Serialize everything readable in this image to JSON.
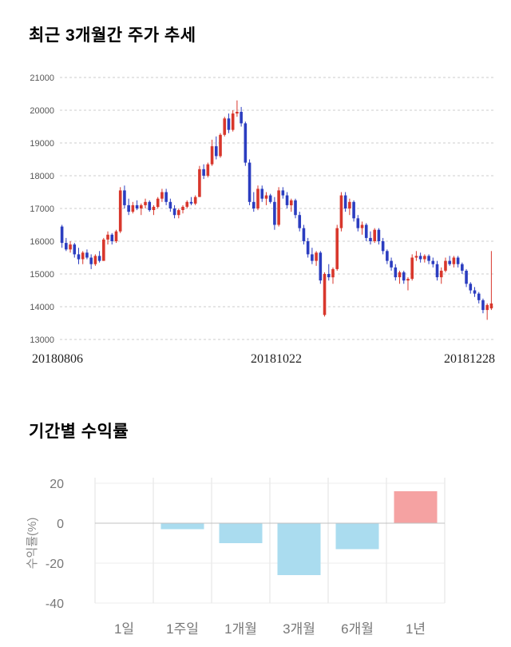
{
  "chart_data": [
    {
      "type": "candlestick",
      "title": "최근 3개월간 주가 추세",
      "x_labels": [
        "20180806",
        "20181022",
        "20181228"
      ],
      "y_ticks": [
        21000,
        20000,
        19000,
        18000,
        17000,
        16000,
        15000,
        14000,
        13000
      ],
      "ylim": [
        13000,
        21000
      ],
      "colors": {
        "up": "#d8372c",
        "down": "#2b3dc0",
        "grid": "#cccccc"
      },
      "candles": [
        [
          16450,
          16500,
          15800,
          15950
        ],
        [
          15950,
          16100,
          15700,
          15750
        ],
        [
          15750,
          16000,
          15650,
          15900
        ],
        [
          15900,
          15950,
          15500,
          15600
        ],
        [
          15600,
          15800,
          15300,
          15450
        ],
        [
          15450,
          15700,
          15300,
          15650
        ],
        [
          15650,
          15750,
          15450,
          15500
        ],
        [
          15500,
          15600,
          15150,
          15300
        ],
        [
          15300,
          15600,
          15250,
          15550
        ],
        [
          15550,
          15700,
          15350,
          15400
        ],
        [
          15400,
          16100,
          15400,
          16050
        ],
        [
          16050,
          16300,
          15900,
          16200
        ],
        [
          16200,
          16250,
          15900,
          16000
        ],
        [
          16000,
          16350,
          15950,
          16300
        ],
        [
          16300,
          17650,
          16250,
          17550
        ],
        [
          17550,
          17700,
          17000,
          17100
        ],
        [
          17100,
          17300,
          16800,
          16900
        ],
        [
          16900,
          17200,
          16850,
          17100
        ],
        [
          17100,
          17250,
          16950,
          17000
        ],
        [
          17000,
          17150,
          16800,
          17100
        ],
        [
          17100,
          17300,
          17000,
          17200
        ],
        [
          17200,
          17250,
          16900,
          16950
        ],
        [
          16950,
          17100,
          16800,
          17050
        ],
        [
          17050,
          17350,
          17000,
          17300
        ],
        [
          17300,
          17600,
          17200,
          17500
        ],
        [
          17500,
          17600,
          17100,
          17200
        ],
        [
          17200,
          17300,
          16900,
          17000
        ],
        [
          17000,
          17100,
          16700,
          16800
        ],
        [
          16800,
          17000,
          16700,
          16950
        ],
        [
          16950,
          17100,
          16850,
          17050
        ],
        [
          17050,
          17250,
          17000,
          17200
        ],
        [
          17200,
          17350,
          17100,
          17150
        ],
        [
          17150,
          17400,
          17100,
          17350
        ],
        [
          17350,
          18300,
          17350,
          18200
        ],
        [
          18200,
          18350,
          17900,
          18000
        ],
        [
          18000,
          18400,
          17950,
          18350
        ],
        [
          18350,
          19100,
          18300,
          18900
        ],
        [
          18900,
          19200,
          18500,
          18600
        ],
        [
          18600,
          19300,
          18550,
          19250
        ],
        [
          19250,
          19800,
          19200,
          19750
        ],
        [
          19750,
          19900,
          19300,
          19400
        ],
        [
          19400,
          20000,
          19350,
          19900
        ],
        [
          19900,
          20300,
          19800,
          19950
        ],
        [
          19950,
          20100,
          19500,
          19600
        ],
        [
          19600,
          19650,
          18300,
          18400
        ],
        [
          18400,
          18500,
          17100,
          17200
        ],
        [
          17200,
          17500,
          16900,
          17000
        ],
        [
          17000,
          17700,
          16950,
          17600
        ],
        [
          17600,
          17700,
          17200,
          17300
        ],
        [
          17300,
          17500,
          17100,
          17400
        ],
        [
          17400,
          17450,
          17150,
          17200
        ],
        [
          17200,
          17350,
          16350,
          16500
        ],
        [
          16500,
          17650,
          16450,
          17550
        ],
        [
          17550,
          17650,
          17300,
          17400
        ],
        [
          17400,
          17500,
          17000,
          17100
        ],
        [
          17100,
          17300,
          16900,
          17250
        ],
        [
          17250,
          17300,
          16700,
          16800
        ],
        [
          16800,
          16900,
          16300,
          16400
        ],
        [
          16400,
          16500,
          15900,
          16000
        ],
        [
          16000,
          16100,
          15500,
          15600
        ],
        [
          15600,
          15800,
          15300,
          15400
        ],
        [
          15400,
          15700,
          15250,
          15650
        ],
        [
          15650,
          15700,
          14700,
          14800
        ],
        [
          13750,
          15050,
          13700,
          15000
        ],
        [
          15000,
          15300,
          14800,
          14900
        ],
        [
          14900,
          15200,
          14700,
          15150
        ],
        [
          15150,
          16500,
          15100,
          16400
        ],
        [
          16400,
          17500,
          16300,
          17400
        ],
        [
          17400,
          17500,
          16900,
          17000
        ],
        [
          17000,
          17300,
          16800,
          17200
        ],
        [
          17200,
          17250,
          16600,
          16700
        ],
        [
          16700,
          16800,
          16300,
          16400
        ],
        [
          16400,
          16600,
          16200,
          16500
        ],
        [
          16500,
          16550,
          16000,
          16100
        ],
        [
          16100,
          16300,
          15900,
          16000
        ],
        [
          16000,
          16400,
          15950,
          16350
        ],
        [
          16350,
          16400,
          15900,
          16000
        ],
        [
          16000,
          16100,
          15600,
          15700
        ],
        [
          15700,
          15750,
          15300,
          15400
        ],
        [
          15400,
          15500,
          15100,
          15200
        ],
        [
          15200,
          15300,
          14800,
          14900
        ],
        [
          14900,
          15100,
          14700,
          15050
        ],
        [
          15050,
          15100,
          14700,
          14800
        ],
        [
          14800,
          14900,
          14500,
          14850
        ],
        [
          14850,
          15600,
          14800,
          15500
        ],
        [
          15500,
          15700,
          15400,
          15550
        ],
        [
          15550,
          15650,
          15350,
          15450
        ],
        [
          15450,
          15600,
          15350,
          15550
        ],
        [
          15550,
          15600,
          15300,
          15400
        ],
        [
          15400,
          15500,
          15200,
          15300
        ],
        [
          15300,
          15400,
          14800,
          14900
        ],
        [
          14900,
          15200,
          14700,
          15100
        ],
        [
          15100,
          15500,
          15050,
          15400
        ],
        [
          15400,
          15550,
          15250,
          15300
        ],
        [
          15300,
          15550,
          15200,
          15500
        ],
        [
          15500,
          15550,
          15200,
          15300
        ],
        [
          15300,
          15350,
          15000,
          15100
        ],
        [
          15100,
          15150,
          14600,
          14700
        ],
        [
          14700,
          14750,
          14400,
          14500
        ],
        [
          14500,
          14600,
          14300,
          14400
        ],
        [
          14400,
          14450,
          14100,
          14200
        ],
        [
          14200,
          14250,
          13800,
          13900
        ],
        [
          13900,
          14100,
          13600,
          14050
        ],
        [
          13950,
          15700,
          13900,
          14100
        ]
      ]
    },
    {
      "type": "bar",
      "title": "기간별 수익률",
      "ylabel": "수익률(%)",
      "categories": [
        "1일",
        "1주일",
        "1개월",
        "3개월",
        "6개월",
        "1년"
      ],
      "values": [
        0,
        -3,
        -10,
        -26,
        -13,
        16
      ],
      "y_ticks": [
        20,
        0,
        -20,
        -40
      ],
      "ylim": [
        -40,
        20
      ],
      "colors": {
        "negative": "#aadcef",
        "positive": "#f5a2a2",
        "grid": "#e0e0e0",
        "zero_line": "#c0c0c0"
      }
    }
  ]
}
